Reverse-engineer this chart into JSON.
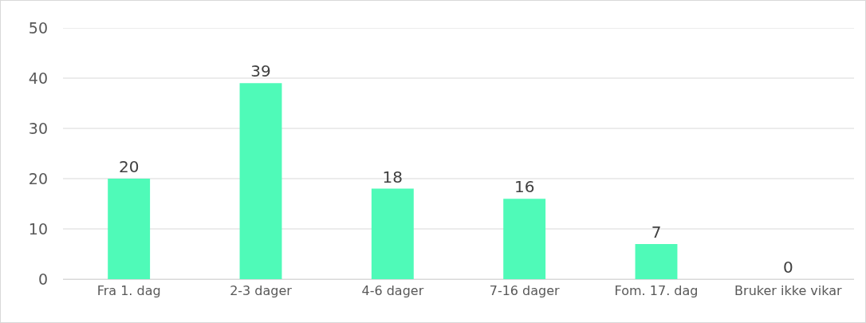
{
  "chart_data": {
    "type": "bar",
    "categories": [
      "Fra 1. dag",
      "2-3 dager",
      "4-6 dager",
      "7-16 dager",
      "Fom. 17. dag",
      "Bruker ikke vikar"
    ],
    "values": [
      20,
      39,
      18,
      16,
      7,
      0
    ],
    "color": "#4ffab8",
    "data_labels": true,
    "ylim": [
      0,
      50
    ],
    "yticks": [
      0,
      10,
      20,
      30,
      40,
      50
    ],
    "grid": "y"
  }
}
